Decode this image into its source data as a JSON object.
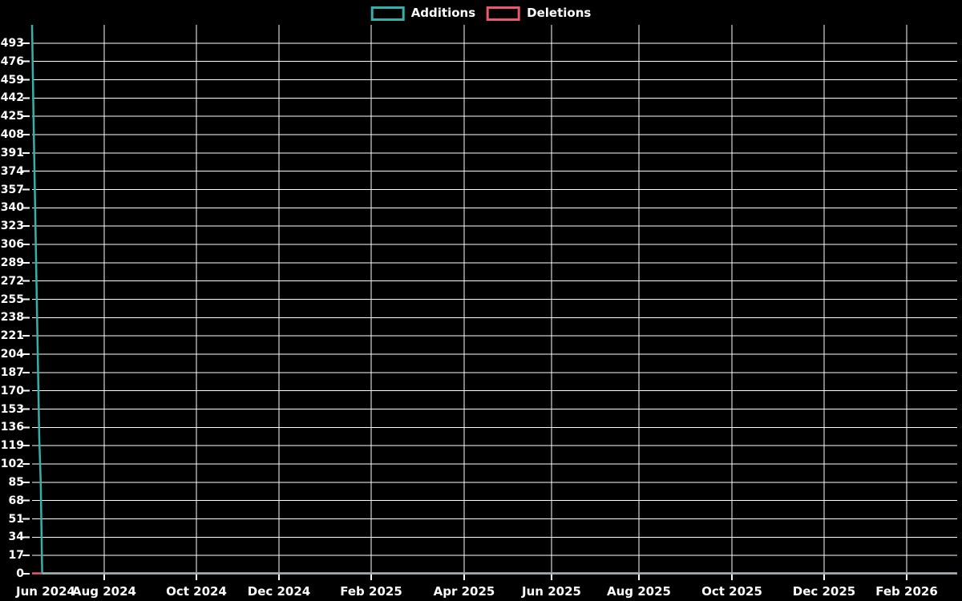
{
  "legend": {
    "items": [
      {
        "label": "Additions",
        "color": "#36b0ab"
      },
      {
        "label": "Deletions",
        "color": "#e85b6e"
      }
    ]
  },
  "chart_data": {
    "type": "line",
    "title": "",
    "xlabel": "",
    "ylabel": "",
    "grid": true,
    "legend_position": "top-center",
    "colors": {
      "background": "#000000",
      "grid": "#ffffff",
      "text": "#ffffff",
      "additions": "#36b0ab",
      "deletions": "#e85b6e",
      "zero_baseline": "#9cb4ba"
    },
    "x_axis": {
      "tick_labels": [
        "Jun 2024",
        "Aug 2024",
        "Oct 2024",
        "Dec 2024",
        "Feb 2025",
        "Apr 2025",
        "Jun 2025",
        "Aug 2025",
        "Oct 2025",
        "Dec 2025",
        "Feb 2026"
      ],
      "start": "2024-06-01",
      "end": "2026-03-05"
    },
    "y_axis": {
      "min": 0,
      "max": 510,
      "tick_step": 17,
      "ticks": [
        0,
        17,
        34,
        51,
        68,
        85,
        102,
        119,
        136,
        153,
        170,
        187,
        204,
        221,
        238,
        255,
        272,
        289,
        306,
        323,
        340,
        357,
        374,
        391,
        408,
        425,
        442,
        459,
        476,
        493
      ]
    },
    "series": [
      {
        "name": "Additions",
        "color": "#36b0ab",
        "points": [
          [
            "2024-06-01",
            510
          ],
          [
            "2024-06-02",
            425
          ],
          [
            "2024-06-03",
            350
          ],
          [
            "2024-06-04",
            275
          ],
          [
            "2024-06-05",
            200
          ],
          [
            "2024-06-06",
            125
          ],
          [
            "2024-06-07",
            85
          ],
          [
            "2024-06-08",
            0
          ],
          [
            "2026-03-05",
            0
          ]
        ]
      },
      {
        "name": "Deletions",
        "color": "#e85b6e",
        "points": [
          [
            "2024-06-01",
            0
          ],
          [
            "2026-03-05",
            0
          ]
        ]
      }
    ]
  }
}
